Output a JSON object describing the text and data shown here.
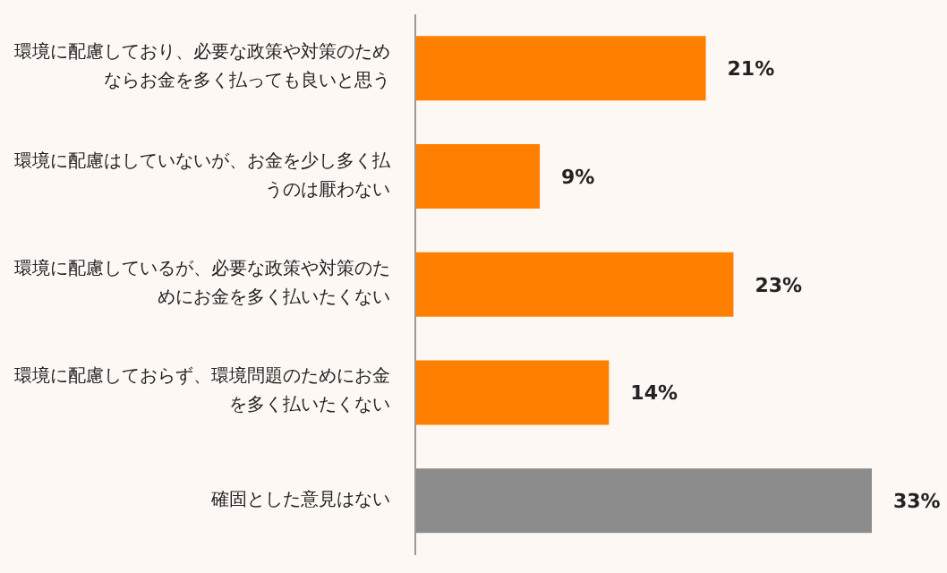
{
  "chart_data": {
    "type": "bar",
    "orientation": "horizontal",
    "categories": [
      "環境に配慮しており、必要な政策や対策のためならお金を多く払っても良いと思う",
      "環境に配慮はしていないが、お金を少し多く払うのは厭わない",
      "環境に配慮しているが、必要な政策や対策のためにお金を多く払いたくない",
      "環境に配慮しておらず、環境問題のためにお金を多く払いたくない",
      "確固とした意見はない"
    ],
    "values": [
      21,
      9,
      23,
      14,
      33
    ],
    "colors": [
      "#ff8000",
      "#ff8000",
      "#ff8000",
      "#ff8000",
      "#8c8c8c"
    ],
    "value_labels": [
      "21%",
      "9%",
      "23%",
      "14%",
      "33%"
    ]
  }
}
